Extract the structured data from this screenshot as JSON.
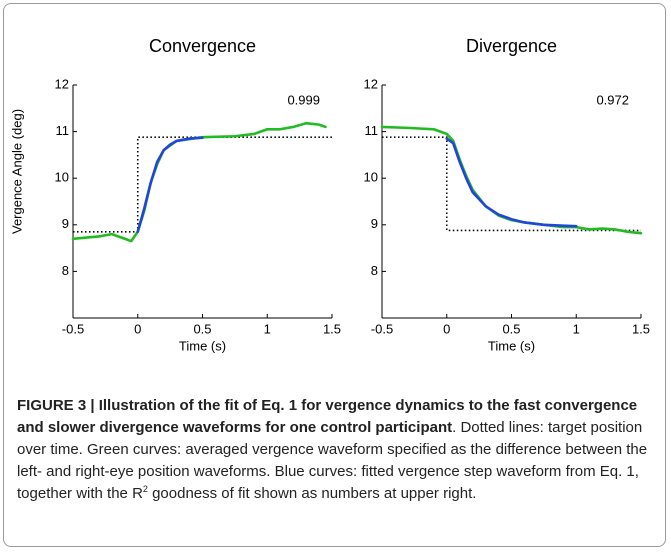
{
  "chart_data": [
    {
      "type": "line",
      "title": "Convergence",
      "xlabel": "Time (s)",
      "ylabel": "Vergence Angle (deg)",
      "annotation": "0.999",
      "annotation_color": "#1a1aff",
      "xlim": [
        -0.5,
        1.5
      ],
      "xticks": [
        -0.5,
        0,
        0.5,
        1,
        1.5
      ],
      "ylim": [
        7,
        12
      ],
      "yticks": [
        8,
        9,
        10,
        11,
        12
      ],
      "series": [
        {
          "color": "#000000",
          "dash": "dotted",
          "x": [
            -0.5,
            0,
            0,
            1.5
          ],
          "values": [
            8.85,
            8.85,
            10.88,
            10.88
          ]
        },
        {
          "color": "#22bb22",
          "x": [
            -0.5,
            -0.3,
            -0.2,
            -0.1,
            -0.05,
            0,
            0.05,
            0.1,
            0.15,
            0.2,
            0.3,
            0.5,
            0.75,
            0.9,
            1.0,
            1.1,
            1.2,
            1.3,
            1.4,
            1.45
          ],
          "values": [
            8.7,
            8.75,
            8.8,
            8.7,
            8.65,
            8.85,
            9.3,
            9.9,
            10.3,
            10.6,
            10.8,
            10.88,
            10.9,
            10.95,
            11.05,
            11.05,
            11.1,
            11.18,
            11.15,
            11.1
          ]
        },
        {
          "color": "#2244dd",
          "x": [
            0,
            0.05,
            0.1,
            0.15,
            0.2,
            0.25,
            0.3,
            0.4,
            0.5
          ],
          "values": [
            8.85,
            9.35,
            9.9,
            10.35,
            10.6,
            10.72,
            10.8,
            10.85,
            10.87
          ]
        }
      ]
    },
    {
      "type": "line",
      "title": "Divergence",
      "xlabel": "Time (s)",
      "annotation": "0.972",
      "annotation_color": "#1a1aff",
      "xlim": [
        -0.5,
        1.5
      ],
      "xticks": [
        -0.5,
        0,
        0.5,
        1,
        1.5
      ],
      "ylim": [
        7,
        12
      ],
      "yticks": [
        8,
        9,
        10,
        11,
        12
      ],
      "series": [
        {
          "color": "#000000",
          "dash": "dotted",
          "x": [
            -0.5,
            0,
            0,
            1.5
          ],
          "values": [
            10.88,
            10.88,
            8.88,
            8.88
          ]
        },
        {
          "color": "#22bb22",
          "x": [
            -0.5,
            -0.3,
            -0.1,
            0,
            0.05,
            0.1,
            0.15,
            0.2,
            0.3,
            0.4,
            0.5,
            0.6,
            0.75,
            0.9,
            1.0,
            1.1,
            1.2,
            1.3,
            1.4,
            1.5
          ],
          "values": [
            11.1,
            11.08,
            11.05,
            10.95,
            10.8,
            10.4,
            10.05,
            9.75,
            9.4,
            9.2,
            9.1,
            9.05,
            9.0,
            8.95,
            8.95,
            8.9,
            8.92,
            8.9,
            8.85,
            8.82
          ]
        },
        {
          "color": "#2244dd",
          "x": [
            0,
            0.05,
            0.1,
            0.15,
            0.2,
            0.3,
            0.4,
            0.5,
            0.6,
            0.75,
            0.9,
            1.0
          ],
          "values": [
            10.85,
            10.75,
            10.35,
            10.0,
            9.7,
            9.4,
            9.22,
            9.12,
            9.05,
            9.0,
            8.98,
            8.97
          ]
        }
      ]
    }
  ],
  "caption": {
    "label": "FIGURE 3 | Illustration of the fit of Eq. 1 for vergence dynamics to the fast convergence and slower divergence waveforms for one control participant",
    "body_before": ". Dotted lines: target position over time. Green curves: averaged vergence waveform specified as the difference between the left- and right-eye position waveforms. Blue curves: fitted vergence step waveform from Eq. 1, together with the R",
    "superscript": "2",
    "body_after": " goodness of fit shown as numbers at upper right."
  }
}
